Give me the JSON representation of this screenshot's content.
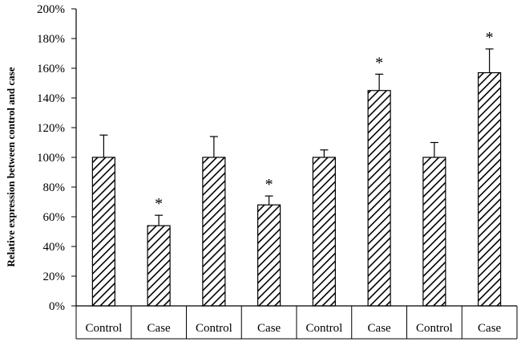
{
  "chart_data": {
    "type": "bar",
    "title": "",
    "xlabel": "",
    "ylabel": "Relative expression between control and case",
    "ylim": [
      0,
      200
    ],
    "yticks": [
      "0%",
      "20%",
      "40%",
      "60%",
      "80%",
      "100%",
      "120%",
      "140%",
      "160%",
      "180%",
      "200%"
    ],
    "grid": false,
    "legend": "none",
    "categories": [
      "Control",
      "Case",
      "Control",
      "Case",
      "Control",
      "Case",
      "Control",
      "Case"
    ],
    "values": [
      100,
      54,
      100,
      68,
      100,
      145,
      100,
      157
    ],
    "error_plus": [
      15,
      7,
      14,
      6,
      5,
      11,
      10,
      16
    ],
    "significance": [
      "",
      "*",
      "",
      "*",
      "",
      "*",
      "",
      "*"
    ],
    "bar_fill": "diagonal-hatch",
    "colors": {
      "bar_stroke": "#000000",
      "hatch": "#000000",
      "background": "#ffffff"
    }
  }
}
